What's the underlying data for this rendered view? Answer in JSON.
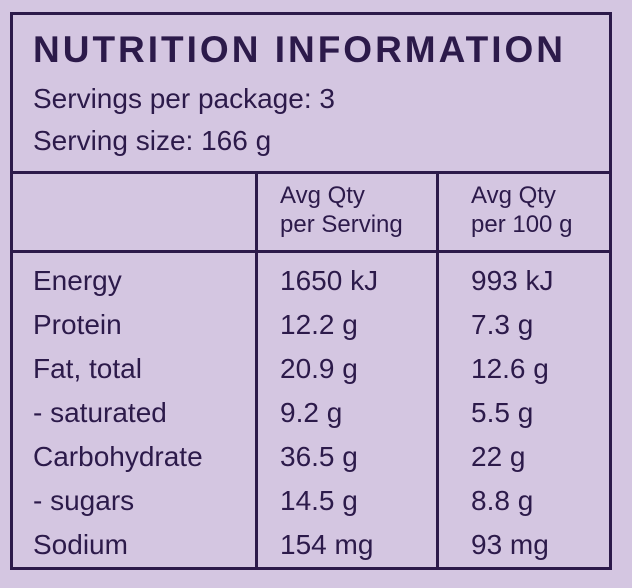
{
  "panel": {
    "title": "NUTRITION INFORMATION",
    "servings_per_package": "Servings per package: 3",
    "serving_size": "Serving size: 166 g"
  },
  "columns": {
    "per_serving": [
      "Avg Qty",
      "per Serving"
    ],
    "per_100g": [
      "Avg Qty",
      "per 100 g"
    ]
  },
  "rows": [
    {
      "name": "Energy",
      "per_serving": "1650 kJ",
      "per_100g": "993 kJ"
    },
    {
      "name": "Protein",
      "per_serving": "12.2 g",
      "per_100g": "7.3 g"
    },
    {
      "name": "Fat, total",
      "per_serving": "20.9 g",
      "per_100g": "12.6 g"
    },
    {
      "name": "- saturated",
      "per_serving": "9.2 g",
      "per_100g": "5.5 g"
    },
    {
      "name": "Carbohydrate",
      "per_serving": "36.5 g",
      "per_100g": "22 g"
    },
    {
      "name": "- sugars",
      "per_serving": "14.5 g",
      "per_100g": "8.8 g"
    },
    {
      "name": "Sodium",
      "per_serving": "154 mg",
      "per_100g": "93 mg"
    }
  ],
  "colors": {
    "background": "#d4c6e1",
    "ink": "#2c1a4a"
  }
}
